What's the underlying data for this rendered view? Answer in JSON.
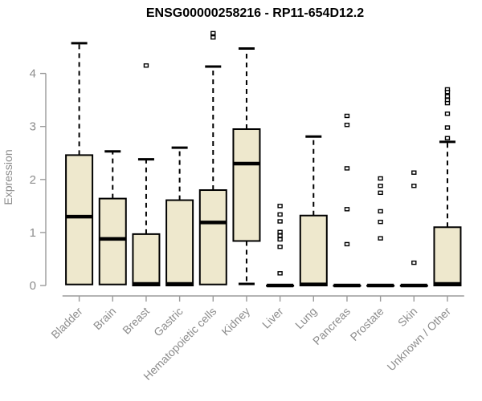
{
  "header": {
    "title": "ENSG00000258216 - RP11-654D12.2"
  },
  "chart_data": {
    "type": "boxplot",
    "title": "ENSG00000258216 - RP11-654D12.2",
    "xlabel": "",
    "ylabel": "Expression",
    "ylim": [
      0,
      4.8
    ],
    "yticks": [
      0,
      1,
      2,
      3,
      4
    ],
    "grid": false,
    "legend": "none",
    "categories": [
      "Bladder",
      "Brain",
      "Breast",
      "Gastric",
      "Hematopoietic cells",
      "Kidney",
      "Liver",
      "Lung",
      "Pancreas",
      "Prostate",
      "Skin",
      "Unknown / Other"
    ],
    "series": [
      {
        "name": "Bladder",
        "whisker_low": 0,
        "q1": 0.02,
        "median": 1.3,
        "q3": 2.46,
        "whisker_high": 4.57,
        "outliers": []
      },
      {
        "name": "Brain",
        "whisker_low": 0,
        "q1": 0.02,
        "median": 0.88,
        "q3": 1.64,
        "whisker_high": 2.53,
        "outliers": []
      },
      {
        "name": "Breast",
        "whisker_low": 0,
        "q1": 0,
        "median": 0.03,
        "q3": 0.97,
        "whisker_high": 2.38,
        "outliers": [
          4.15
        ]
      },
      {
        "name": "Gastric",
        "whisker_low": 0,
        "q1": 0,
        "median": 0.03,
        "q3": 1.61,
        "whisker_high": 2.6,
        "outliers": []
      },
      {
        "name": "Hematopoietic cells",
        "whisker_low": 0,
        "q1": 0.02,
        "median": 1.19,
        "q3": 1.8,
        "whisker_high": 4.13,
        "outliers": [
          4.76,
          4.68
        ]
      },
      {
        "name": "Kidney",
        "whisker_low": 0.03,
        "q1": 0.84,
        "median": 2.3,
        "q3": 2.95,
        "whisker_high": 4.47,
        "outliers": []
      },
      {
        "name": "Liver",
        "whisker_low": 0,
        "q1": 0,
        "median": 0,
        "q3": 0,
        "whisker_high": 0,
        "outliers": [
          1.5,
          1.34,
          1.21,
          1.01,
          0.94,
          0.87,
          0.73,
          0.23
        ]
      },
      {
        "name": "Lung",
        "whisker_low": 0,
        "q1": 0,
        "median": 0.02,
        "q3": 1.32,
        "whisker_high": 2.81,
        "outliers": []
      },
      {
        "name": "Pancreas",
        "whisker_low": 0,
        "q1": 0,
        "median": 0,
        "q3": 0,
        "whisker_high": 0,
        "outliers": [
          3.2,
          3.03,
          2.21,
          1.44,
          0.78
        ]
      },
      {
        "name": "Prostate",
        "whisker_low": 0,
        "q1": 0,
        "median": 0,
        "q3": 0,
        "whisker_high": 0,
        "outliers": [
          2.02,
          1.88,
          1.75,
          1.4,
          1.2,
          0.89
        ]
      },
      {
        "name": "Skin",
        "whisker_low": 0,
        "q1": 0,
        "median": 0,
        "q3": 0,
        "whisker_high": 0,
        "outliers": [
          2.13,
          1.88,
          0.43
        ]
      },
      {
        "name": "Unknown / Other",
        "whisker_low": 0,
        "q1": 0,
        "median": 0.03,
        "q3": 1.1,
        "whisker_high": 2.71,
        "outliers": [
          3.7,
          3.65,
          3.57,
          3.5,
          3.44,
          3.24,
          2.98,
          2.78
        ]
      }
    ],
    "colors": {
      "box_fill": "#EEE8CD",
      "box_border": "#000000",
      "median": "#000000",
      "whisker": "#000000",
      "outlier_stroke": "#000000",
      "outlier_fill": "#ffffff",
      "axis_line": "#9b9b9b",
      "tick_text": "#8c8c8c",
      "title_text": "#000000",
      "background": "#ffffff"
    }
  }
}
